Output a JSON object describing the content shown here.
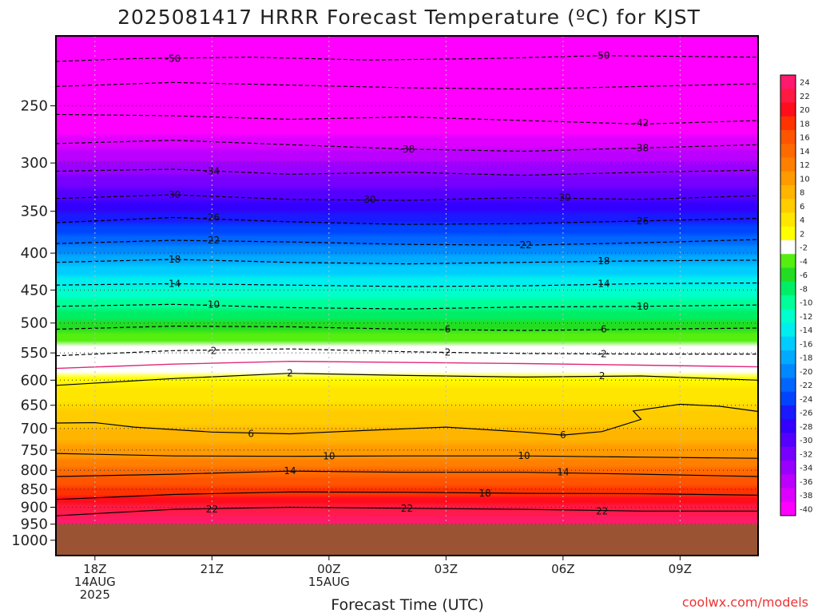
{
  "title": "2025081417 HRRR Forecast Temperature (ºC) for KJST",
  "xlabel": "Forecast Time (UTC)",
  "credit": "coolwx.com/models",
  "colors": {
    "ground": "#9a5434",
    "background": "#ffffff"
  },
  "chart_data": {
    "type": "heatmap",
    "title": "2025081417 HRRR Forecast Temperature (ºC) for KJST",
    "xlabel": "Forecast Time (UTC)",
    "ylabel": "",
    "y_axis": {
      "scale": "log-pressure",
      "range_hPa": [
        1050,
        200
      ],
      "ticks": [
        250,
        300,
        350,
        400,
        450,
        500,
        550,
        600,
        650,
        700,
        750,
        800,
        850,
        900,
        950,
        1000
      ]
    },
    "x_axis": {
      "range_hours": [
        -1,
        17
      ],
      "ticks": [
        {
          "hour": 0,
          "lines": [
            "18Z",
            "14AUG",
            "2025"
          ]
        },
        {
          "hour": 3,
          "lines": [
            "21Z"
          ]
        },
        {
          "hour": 6,
          "lines": [
            "00Z",
            "15AUG"
          ]
        },
        {
          "hour": 9,
          "lines": [
            "03Z"
          ]
        },
        {
          "hour": 12,
          "lines": [
            "06Z"
          ]
        },
        {
          "hour": 15,
          "lines": [
            "09Z"
          ]
        }
      ]
    },
    "ground_level_hPa": 950,
    "colorbar": {
      "labels": [
        24,
        22,
        20,
        18,
        16,
        14,
        12,
        10,
        8,
        6,
        4,
        2,
        -2,
        -4,
        -6,
        -8,
        -10,
        -12,
        -14,
        -16,
        -18,
        -20,
        -22,
        -24,
        -26,
        -28,
        -30,
        -32,
        -34,
        -36,
        -38,
        -40
      ],
      "colors": [
        "#ff1a6e",
        "#ff1a44",
        "#ff0d1a",
        "#ff3300",
        "#ff5500",
        "#ff6a00",
        "#ff8000",
        "#ff9a00",
        "#ffb400",
        "#ffcc00",
        "#ffe600",
        "#ffff00",
        "#ffffff",
        "#55ee11",
        "#22dd22",
        "#00ee66",
        "#00ff99",
        "#00ffcc",
        "#00eeee",
        "#00ccff",
        "#00aaff",
        "#0088ff",
        "#0066ff",
        "#0044ff",
        "#1a1aff",
        "#3300ff",
        "#5500ff",
        "#7700ff",
        "#9900ff",
        "#bb00ff",
        "#dd00ff",
        "#ff00ff"
      ]
    },
    "isotherms": [
      {
        "temp": -50,
        "p": [
          [
            -1,
            217
          ],
          [
            1,
            215
          ],
          [
            4,
            214
          ],
          [
            7,
            216
          ],
          [
            10,
            215
          ],
          [
            13,
            213
          ],
          [
            17,
            214
          ]
        ]
      },
      {
        "temp": -46,
        "p": [
          [
            -1,
            235
          ],
          [
            2,
            232
          ],
          [
            5,
            234
          ],
          [
            8,
            236
          ],
          [
            11,
            237
          ],
          [
            14,
            235
          ],
          [
            17,
            233
          ]
        ]
      },
      {
        "temp": -42,
        "p": [
          [
            -1,
            257
          ],
          [
            2,
            258
          ],
          [
            5,
            261
          ],
          [
            8,
            259
          ],
          [
            11,
            262
          ],
          [
            14,
            265
          ],
          [
            17,
            262
          ]
        ]
      },
      {
        "temp": -38,
        "p": [
          [
            -1,
            282
          ],
          [
            2,
            279
          ],
          [
            5,
            283
          ],
          [
            8,
            287
          ],
          [
            11,
            289
          ],
          [
            14,
            286
          ],
          [
            17,
            283
          ]
        ]
      },
      {
        "temp": -34,
        "p": [
          [
            -1,
            308
          ],
          [
            2,
            306
          ],
          [
            5,
            311
          ],
          [
            8,
            309
          ],
          [
            11,
            312
          ],
          [
            14,
            309
          ],
          [
            17,
            307
          ]
        ]
      },
      {
        "temp": -30,
        "p": [
          [
            -1,
            336
          ],
          [
            2,
            332
          ],
          [
            5,
            337
          ],
          [
            8,
            338
          ],
          [
            11,
            335
          ],
          [
            14,
            337
          ],
          [
            17,
            333
          ]
        ]
      },
      {
        "temp": -26,
        "p": [
          [
            -1,
            363
          ],
          [
            2,
            357
          ],
          [
            5,
            362
          ],
          [
            8,
            365
          ],
          [
            11,
            364
          ],
          [
            14,
            361
          ],
          [
            17,
            358
          ]
        ]
      },
      {
        "temp": -22,
        "p": [
          [
            -1,
            388
          ],
          [
            2,
            384
          ],
          [
            5,
            386
          ],
          [
            8,
            389
          ],
          [
            11,
            390
          ],
          [
            14,
            387
          ],
          [
            17,
            383
          ]
        ]
      },
      {
        "temp": -18,
        "p": [
          [
            -1,
            412
          ],
          [
            2,
            408
          ],
          [
            5,
            412
          ],
          [
            8,
            414
          ],
          [
            11,
            412
          ],
          [
            14,
            410
          ],
          [
            17,
            409
          ]
        ]
      },
      {
        "temp": -14,
        "p": [
          [
            -1,
            443
          ],
          [
            2,
            441
          ],
          [
            5,
            443
          ],
          [
            8,
            445
          ],
          [
            11,
            444
          ],
          [
            14,
            441
          ],
          [
            17,
            440
          ]
        ]
      },
      {
        "temp": -10,
        "p": [
          [
            -1,
            474
          ],
          [
            2,
            471
          ],
          [
            5,
            476
          ],
          [
            8,
            478
          ],
          [
            11,
            475
          ],
          [
            14,
            474
          ],
          [
            17,
            472
          ]
        ]
      },
      {
        "temp": -6,
        "p": [
          [
            -1,
            510
          ],
          [
            2,
            505
          ],
          [
            5,
            506
          ],
          [
            8,
            510
          ],
          [
            11,
            512
          ],
          [
            14,
            510
          ],
          [
            17,
            508
          ]
        ]
      },
      {
        "temp": -2,
        "p": [
          [
            -1,
            555
          ],
          [
            2,
            546
          ],
          [
            5,
            543
          ],
          [
            8,
            548
          ],
          [
            11,
            551
          ],
          [
            14,
            552
          ],
          [
            17,
            552
          ]
        ]
      },
      {
        "temp": 2,
        "p": [
          [
            -1,
            610
          ],
          [
            2,
            597
          ],
          [
            5,
            587
          ],
          [
            8,
            591
          ],
          [
            11,
            594
          ],
          [
            14,
            592
          ],
          [
            17,
            600
          ]
        ]
      },
      {
        "temp": 6,
        "p": [
          [
            -1,
            688
          ],
          [
            0,
            687
          ],
          [
            1,
            697
          ],
          [
            3,
            708
          ],
          [
            5,
            712
          ],
          [
            7,
            704
          ],
          [
            9,
            697
          ],
          [
            11,
            708
          ],
          [
            12,
            715
          ],
          [
            13,
            707
          ],
          [
            14,
            680
          ],
          [
            13.8,
            662
          ],
          [
            15,
            648
          ],
          [
            16,
            652
          ],
          [
            17,
            663
          ]
        ]
      },
      {
        "temp": 10,
        "p": [
          [
            -1,
            758
          ],
          [
            2,
            764
          ],
          [
            5,
            765
          ],
          [
            8,
            764
          ],
          [
            11,
            764
          ],
          [
            14,
            767
          ],
          [
            17,
            770
          ]
        ]
      },
      {
        "temp": 14,
        "p": [
          [
            -1,
            816
          ],
          [
            2,
            810
          ],
          [
            5,
            802
          ],
          [
            8,
            805
          ],
          [
            11,
            805
          ],
          [
            14,
            810
          ],
          [
            17,
            816
          ]
        ]
      },
      {
        "temp": 18,
        "p": [
          [
            -1,
            878
          ],
          [
            2,
            864
          ],
          [
            5,
            857
          ],
          [
            8,
            858
          ],
          [
            11,
            861
          ],
          [
            14,
            862
          ],
          [
            17,
            866
          ]
        ]
      },
      {
        "temp": 22,
        "p": [
          [
            -1,
            925
          ],
          [
            2,
            906
          ],
          [
            5,
            900
          ],
          [
            8,
            903
          ],
          [
            11,
            906
          ],
          [
            14,
            911
          ],
          [
            17,
            911
          ]
        ]
      }
    ],
    "zero_line": {
      "temp": 0,
      "p": [
        [
          -1,
          578
        ],
        [
          2,
          570
        ],
        [
          5,
          565
        ],
        [
          8,
          567
        ],
        [
          11,
          569
        ],
        [
          14,
          572
        ],
        [
          17,
          575
        ]
      ]
    },
    "isotherm_labels": [
      {
        "text": "-50",
        "x": 2,
        "p": 215
      },
      {
        "text": "-50",
        "x": 13,
        "p": 213
      },
      {
        "text": "-42",
        "x": 14,
        "p": 264
      },
      {
        "text": "-38",
        "x": 8,
        "p": 287
      },
      {
        "text": "-38",
        "x": 14,
        "p": 286
      },
      {
        "text": "-34",
        "x": 3,
        "p": 308
      },
      {
        "text": "-30",
        "x": 2,
        "p": 332
      },
      {
        "text": "-30",
        "x": 7,
        "p": 337
      },
      {
        "text": "-30",
        "x": 12,
        "p": 335
      },
      {
        "text": "-26",
        "x": 3,
        "p": 357
      },
      {
        "text": "-26",
        "x": 14,
        "p": 361
      },
      {
        "text": "-22",
        "x": 3,
        "p": 384
      },
      {
        "text": "-22",
        "x": 11,
        "p": 390
      },
      {
        "text": "-18",
        "x": 2,
        "p": 408
      },
      {
        "text": "-18",
        "x": 13,
        "p": 410
      },
      {
        "text": "-14",
        "x": 2,
        "p": 441
      },
      {
        "text": "-14",
        "x": 13,
        "p": 441
      },
      {
        "text": "-10",
        "x": 3,
        "p": 471
      },
      {
        "text": "-10",
        "x": 14,
        "p": 474
      },
      {
        "text": "-6",
        "x": 9,
        "p": 510
      },
      {
        "text": "-6",
        "x": 13,
        "p": 510
      },
      {
        "text": "-2",
        "x": 3,
        "p": 546
      },
      {
        "text": "-2",
        "x": 9,
        "p": 549
      },
      {
        "text": "-2",
        "x": 13,
        "p": 552
      },
      {
        "text": "2",
        "x": 5,
        "p": 587
      },
      {
        "text": "2",
        "x": 13,
        "p": 592
      },
      {
        "text": "6",
        "x": 4,
        "p": 712
      },
      {
        "text": "6",
        "x": 12,
        "p": 715
      },
      {
        "text": "10",
        "x": 6,
        "p": 765
      },
      {
        "text": "10",
        "x": 11,
        "p": 764
      },
      {
        "text": "14",
        "x": 5,
        "p": 802
      },
      {
        "text": "14",
        "x": 12,
        "p": 805
      },
      {
        "text": "18",
        "x": 10,
        "p": 861
      },
      {
        "text": "22",
        "x": 3,
        "p": 906
      },
      {
        "text": "22",
        "x": 8,
        "p": 903
      },
      {
        "text": "22",
        "x": 13,
        "p": 911
      }
    ],
    "grid": true
  }
}
